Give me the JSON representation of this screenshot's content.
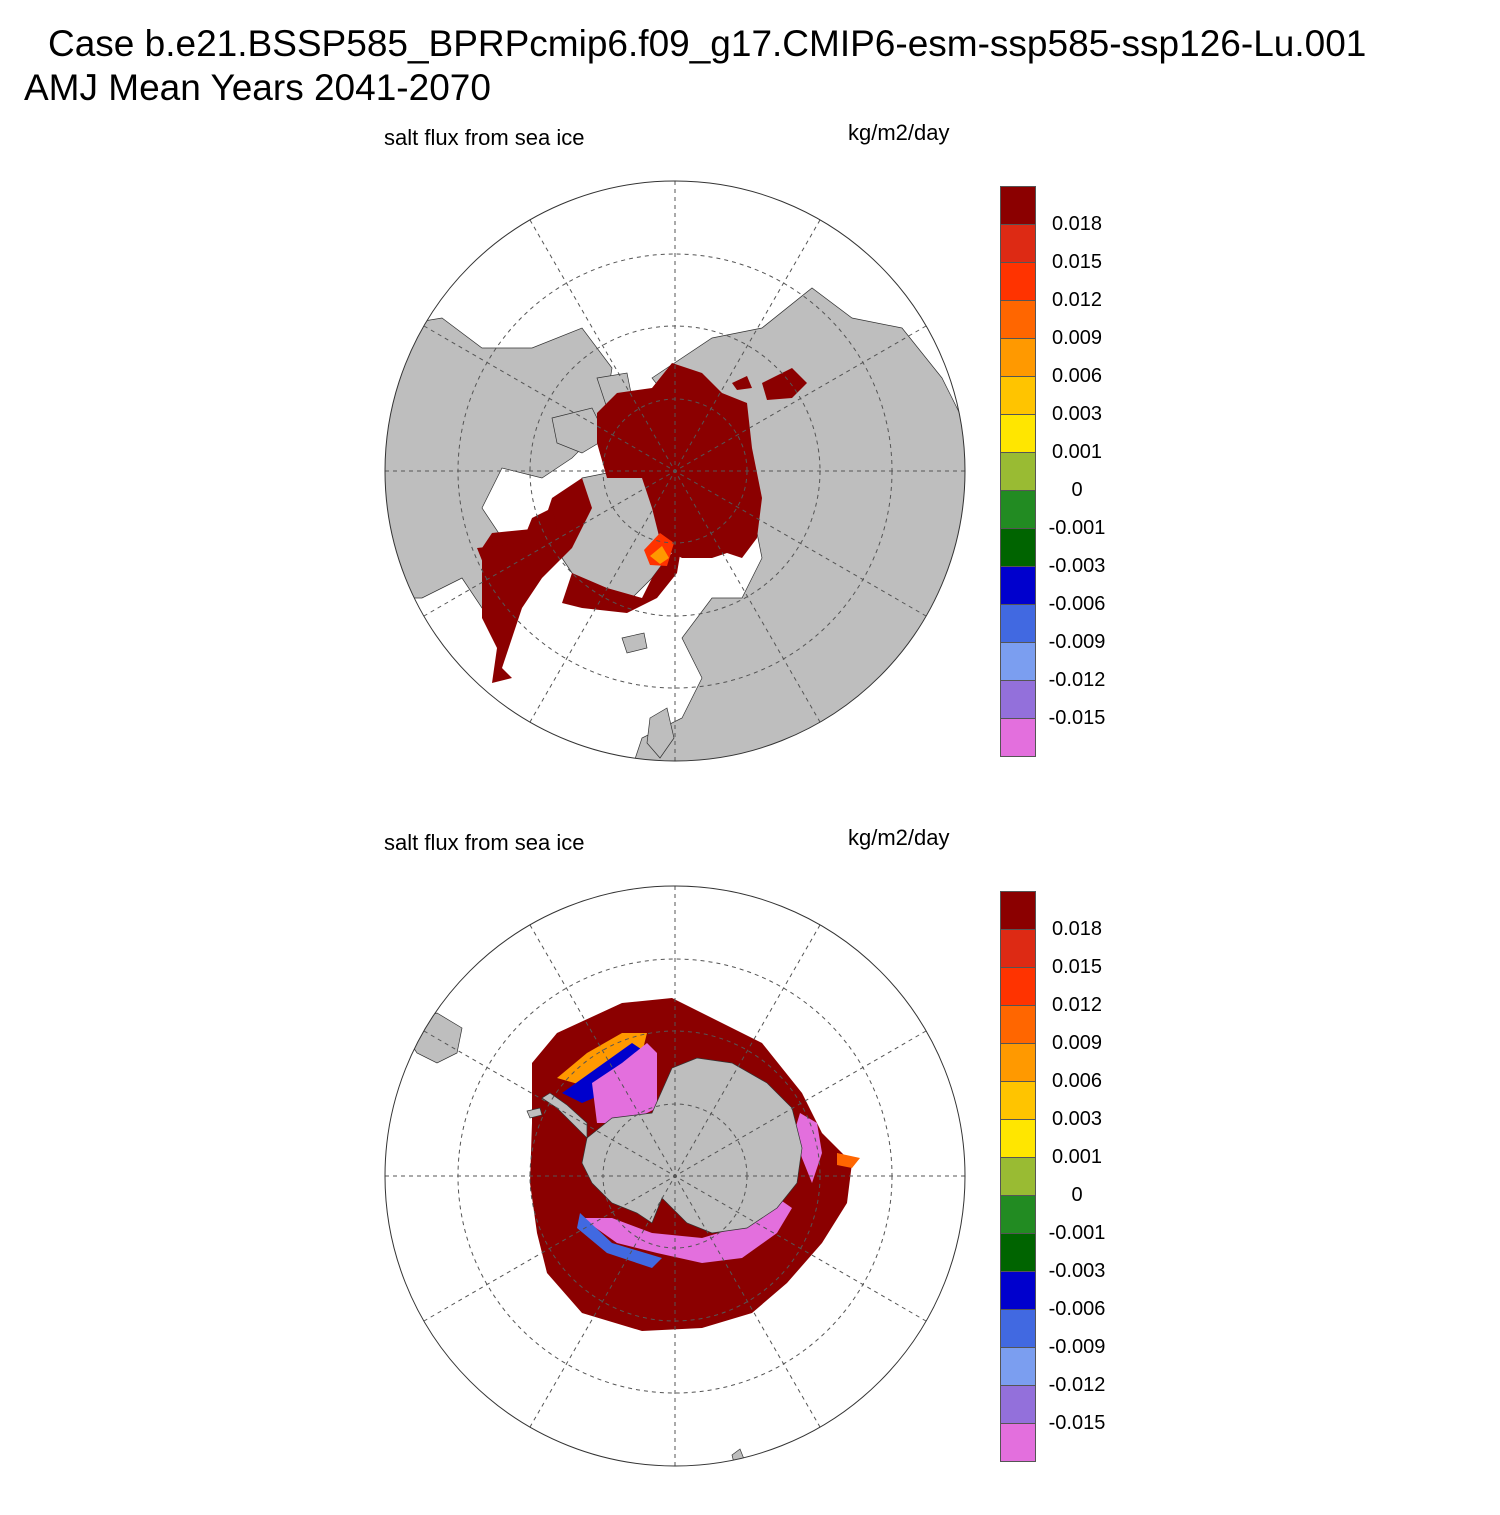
{
  "title": {
    "line1": "Case b.e21.BSSP585_BPRPcmip6.f09_g17.CMIP6-esm-ssp585-ssp126-Lu.001",
    "line2": "AMJ Mean   Years 2041-2070"
  },
  "panels": [
    {
      "id": "north",
      "variable": "salt flux from sea ice",
      "units": "kg/m2/day",
      "hemisphere": "north"
    },
    {
      "id": "south",
      "variable": "salt flux from sea ice",
      "units": "kg/m2/day",
      "hemisphere": "south"
    }
  ],
  "colorbar": {
    "labels": [
      "0.018",
      "0.015",
      "0.012",
      "0.009",
      "0.006",
      "0.003",
      "0.001",
      "0",
      "-0.001",
      "-0.003",
      "-0.006",
      "-0.009",
      "-0.012",
      "-0.015"
    ],
    "colors": [
      "#8b0000",
      "#dd2a14",
      "#ff3300",
      "#ff6600",
      "#ff9900",
      "#ffc400",
      "#ffe600",
      "#99bb33",
      "#228b22",
      "#006400",
      "#0000cd",
      "#4169e1",
      "#7b9ef0",
      "#9370db",
      "#e36fdd"
    ]
  },
  "colors": {
    "land": "#bebebe",
    "ocean": "#ffffff",
    "ice_max": "#8b0000",
    "ice_min": "#e36fdd"
  }
}
